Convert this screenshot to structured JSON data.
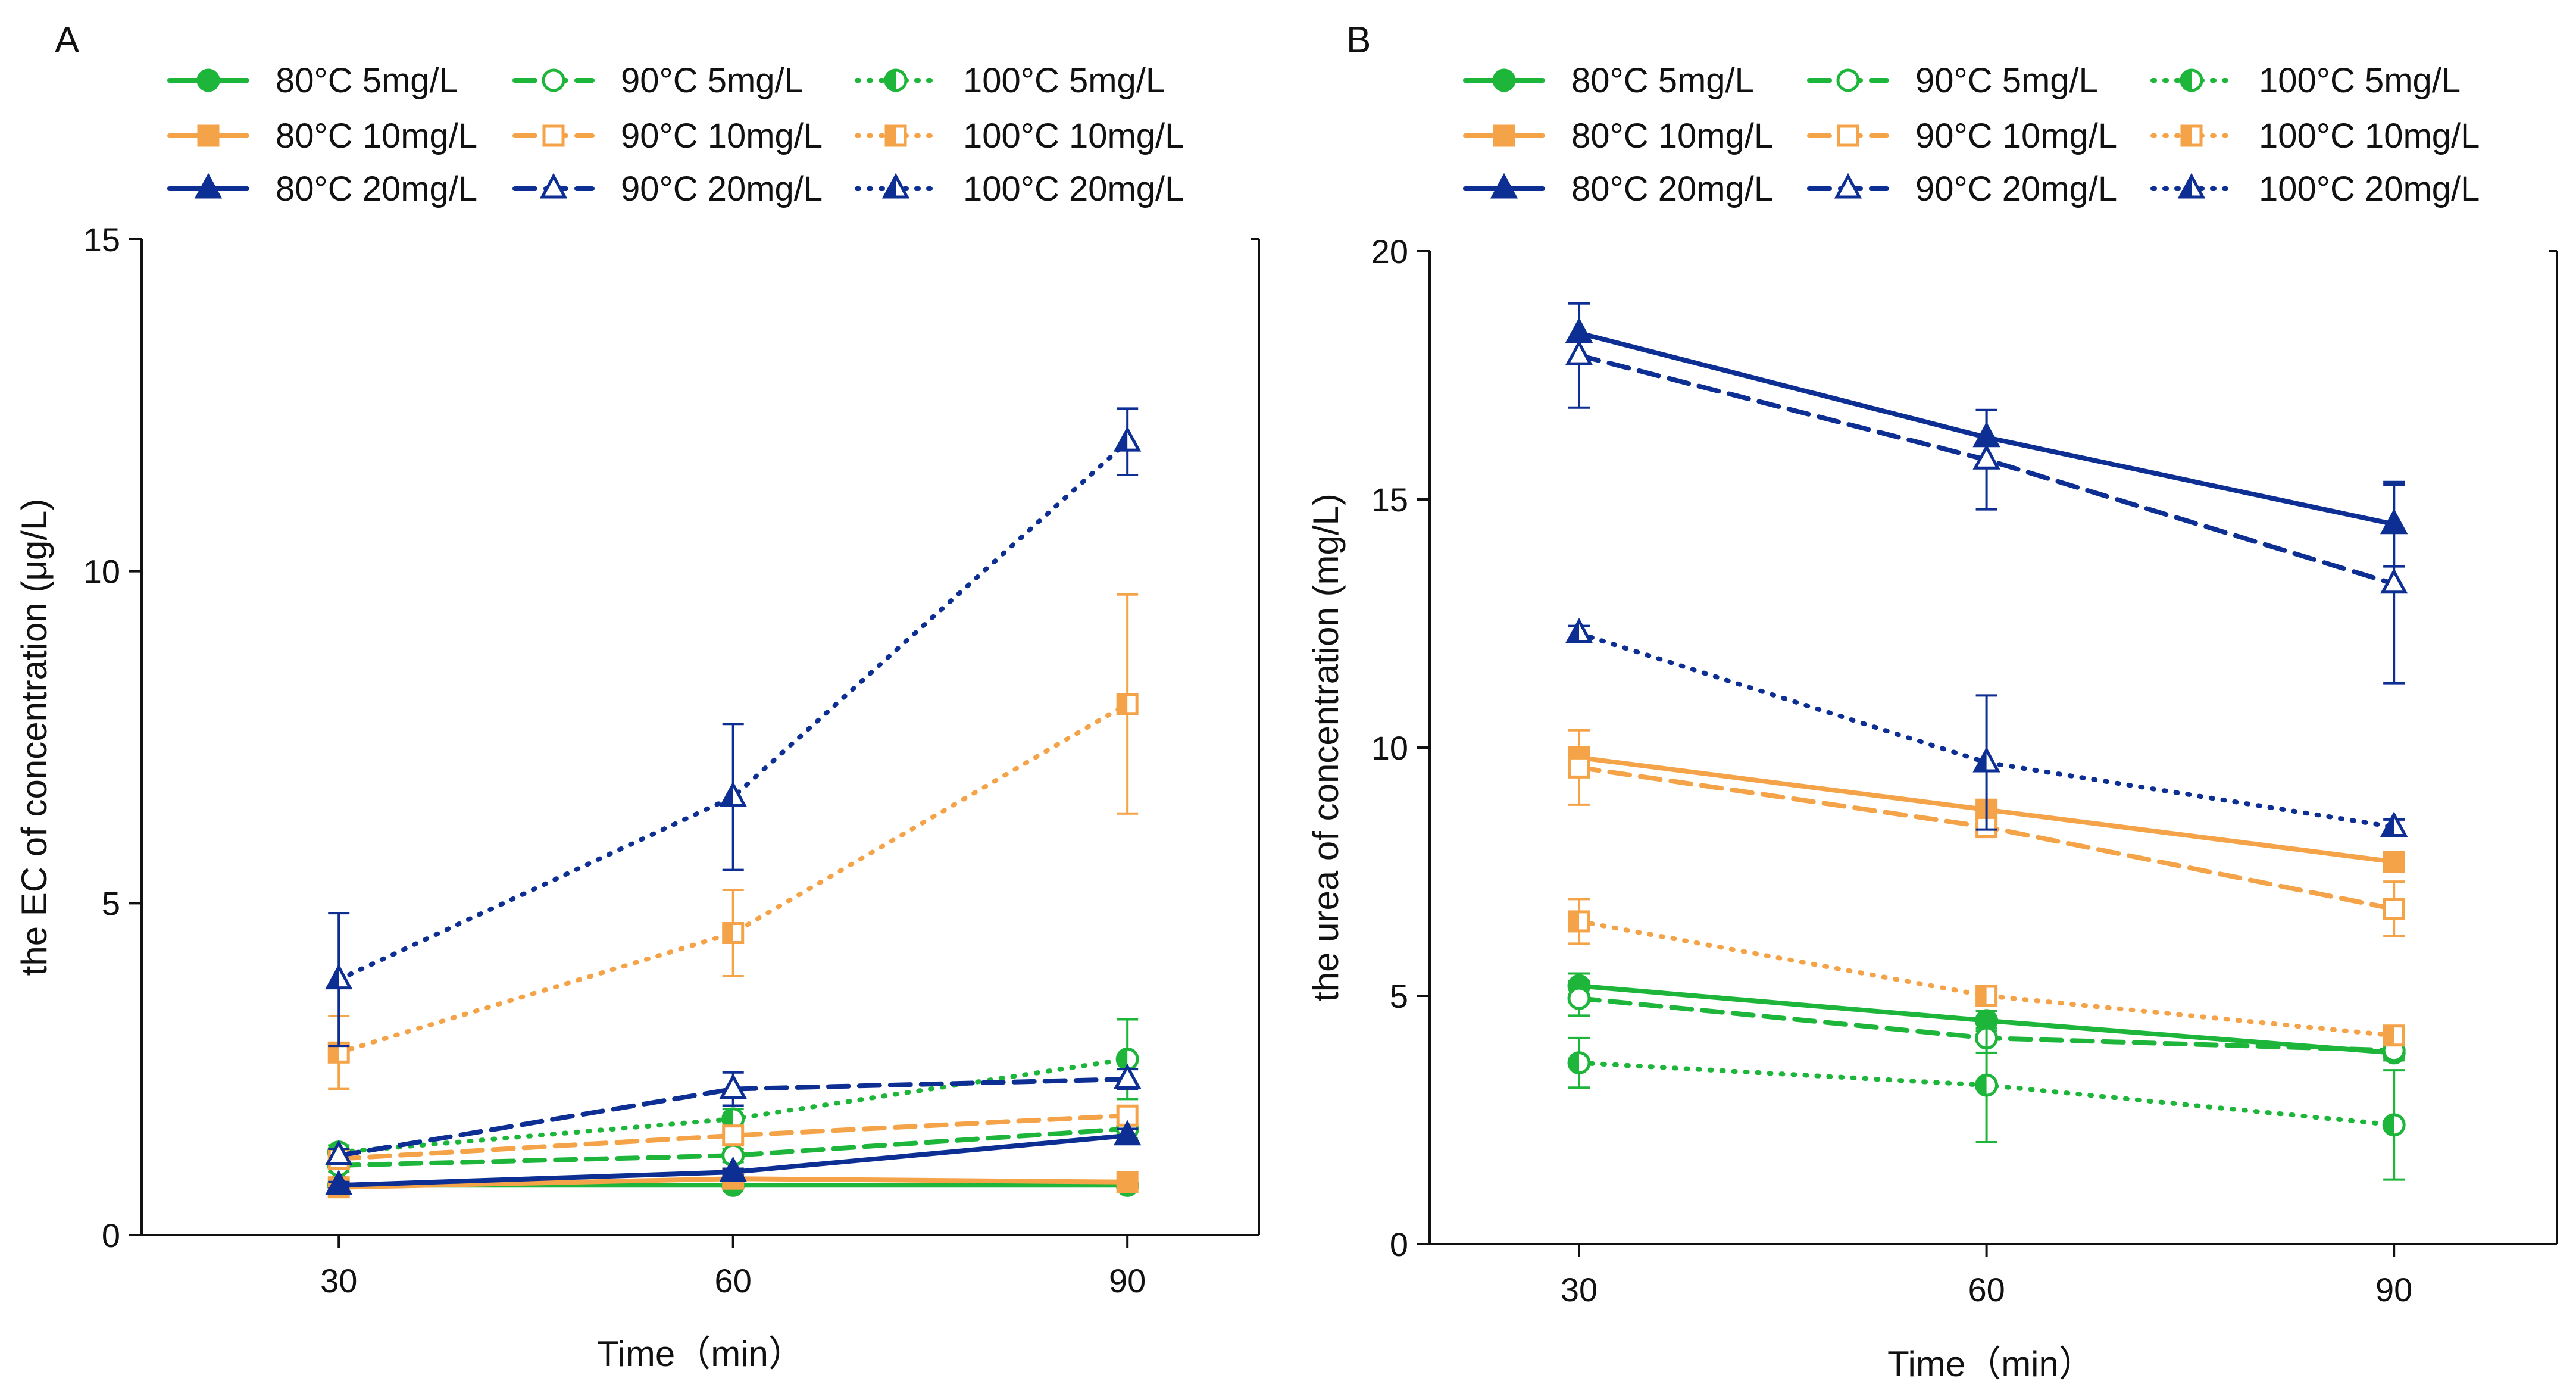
{
  "styles": {
    "colors": {
      "5mg/L": "#1DB53A",
      "10mg/L": "#F5A348",
      "20mg/L": "#0D2E92"
    },
    "temperature_dash": {
      "80°C": "solid",
      "90°C": "dashed",
      "100°C": "dotted"
    },
    "marker_shape": {
      "5mg/L": "circle",
      "10mg/L": "square",
      "20mg/L": "triangle"
    },
    "marker_fill": {
      "80°C": "filled",
      "90°C": "open",
      "100°C": "half"
    }
  },
  "chart_data": [
    {
      "panel_label": "A",
      "type": "line",
      "title": "",
      "xlabel": "Time（min）",
      "ylabel": "the EC of concentration (μg/L)",
      "x": [
        30,
        60,
        90
      ],
      "xlim": [
        15,
        100
      ],
      "ylim": [
        0,
        15
      ],
      "xticks": [
        30,
        60,
        90
      ],
      "yticks": [
        0,
        5,
        10,
        15
      ],
      "legend_position": "top",
      "series": [
        {
          "name": "80°C 5mg/L",
          "temp": "80°C",
          "conc": "5mg/L",
          "values": [
            0.75,
            0.75,
            0.75
          ],
          "errors": [
            0.05,
            0.05,
            0.05
          ]
        },
        {
          "name": "90°C 5mg/L",
          "temp": "90°C",
          "conc": "5mg/L",
          "values": [
            1.05,
            1.2,
            1.6
          ],
          "errors": [
            0.1,
            0.1,
            0.15
          ]
        },
        {
          "name": "100°C 5mg/L",
          "temp": "100°C",
          "conc": "5mg/L",
          "values": [
            1.25,
            1.75,
            2.65
          ],
          "errors": [
            0.1,
            0.15,
            0.6
          ]
        },
        {
          "name": "80°C 10mg/L",
          "temp": "80°C",
          "conc": "10mg/L",
          "values": [
            0.72,
            0.85,
            0.8
          ],
          "errors": [
            0.05,
            0.1,
            0.05
          ]
        },
        {
          "name": "90°C 10mg/L",
          "temp": "90°C",
          "conc": "10mg/L",
          "values": [
            1.15,
            1.5,
            1.8
          ],
          "errors": [
            0.1,
            0.1,
            0.1
          ]
        },
        {
          "name": "100°C 10mg/L",
          "temp": "100°C",
          "conc": "10mg/L",
          "values": [
            2.75,
            4.55,
            8.0
          ],
          "errors": [
            0.55,
            0.65,
            1.65
          ]
        },
        {
          "name": "80°C 20mg/L",
          "temp": "80°C",
          "conc": "20mg/L",
          "values": [
            0.75,
            0.95,
            1.5
          ],
          "errors": [
            0.05,
            0.05,
            0.1
          ]
        },
        {
          "name": "90°C 20mg/L",
          "temp": "90°C",
          "conc": "20mg/L",
          "values": [
            1.2,
            2.2,
            2.35
          ],
          "errors": [
            0.1,
            0.25,
            0.15
          ]
        },
        {
          "name": "100°C 20mg/L",
          "temp": "100°C",
          "conc": "20mg/L",
          "values": [
            3.85,
            6.6,
            11.95
          ],
          "errors": [
            1.0,
            1.1,
            0.5
          ]
        }
      ]
    },
    {
      "panel_label": "B",
      "type": "line",
      "title": "",
      "xlabel": "Time（min）",
      "ylabel": "the urea of concentration (mg/L)",
      "x": [
        30,
        60,
        90
      ],
      "xlim": [
        19,
        102
      ],
      "ylim": [
        0,
        20
      ],
      "xticks": [
        30,
        60,
        90
      ],
      "yticks": [
        0,
        5,
        10,
        15,
        20
      ],
      "legend_position": "top",
      "series": [
        {
          "name": "80°C 5mg/L",
          "temp": "80°C",
          "conc": "5mg/L",
          "values": [
            5.2,
            4.5,
            3.85
          ],
          "errors": [
            0.25,
            0.2,
            0.15
          ]
        },
        {
          "name": "90°C 5mg/L",
          "temp": "90°C",
          "conc": "5mg/L",
          "values": [
            4.95,
            4.15,
            3.9
          ],
          "errors": [
            0.35,
            0.3,
            0.15
          ]
        },
        {
          "name": "100°C 5mg/L",
          "temp": "100°C",
          "conc": "5mg/L",
          "values": [
            3.65,
            3.2,
            2.4
          ],
          "errors": [
            0.5,
            1.15,
            1.1
          ]
        },
        {
          "name": "80°C 10mg/L",
          "temp": "80°C",
          "conc": "10mg/L",
          "values": [
            9.8,
            8.75,
            7.7
          ],
          "errors": [
            0.2,
            0.15,
            0.15
          ]
        },
        {
          "name": "90°C 10mg/L",
          "temp": "90°C",
          "conc": "10mg/L",
          "values": [
            9.6,
            8.4,
            6.75
          ],
          "errors": [
            0.75,
            0.2,
            0.55
          ]
        },
        {
          "name": "100°C 10mg/L",
          "temp": "100°C",
          "conc": "10mg/L",
          "values": [
            6.5,
            5.0,
            4.2
          ],
          "errors": [
            0.45,
            0.15,
            0.15
          ]
        },
        {
          "name": "80°C 20mg/L",
          "temp": "80°C",
          "conc": "20mg/L",
          "values": [
            18.35,
            16.25,
            14.5
          ],
          "errors": [
            0.6,
            0.55,
            0.85
          ]
        },
        {
          "name": "90°C 20mg/L",
          "temp": "90°C",
          "conc": "20mg/L",
          "values": [
            17.9,
            15.8,
            13.3
          ],
          "errors": [
            1.05,
            1.0,
            2.0
          ]
        },
        {
          "name": "100°C 20mg/L",
          "temp": "100°C",
          "conc": "20mg/L",
          "values": [
            12.3,
            9.7,
            8.4
          ],
          "errors": [
            0.15,
            1.35,
            0.15
          ]
        }
      ]
    }
  ]
}
